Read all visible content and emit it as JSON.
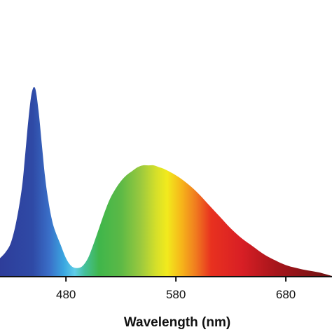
{
  "chart_data": {
    "type": "area",
    "title": "",
    "xlabel": "Wavelength (nm)",
    "ylabel": "",
    "xlim": [
      420,
      722
    ],
    "ylim": [
      0,
      1.0
    ],
    "xticks": [
      480,
      580,
      680
    ],
    "xtick_labels": [
      "480",
      "580",
      "680"
    ],
    "grid": false,
    "legend": "none",
    "fill": "visible-spectrum gradient",
    "series": [
      {
        "x": [
          420,
          425,
          430,
          435,
          440,
          443,
          446,
          449,
          452,
          455,
          458,
          461,
          464,
          467,
          470,
          475,
          480,
          485,
          490,
          495,
          500,
          505,
          510,
          515,
          520,
          525,
          530,
          535,
          540,
          545,
          550,
          555,
          560,
          565,
          570,
          580,
          590,
          600,
          610,
          620,
          630,
          640,
          650,
          660,
          670,
          680,
          690,
          700,
          710,
          722
        ],
        "values": [
          0.09,
          0.12,
          0.17,
          0.28,
          0.45,
          0.62,
          0.8,
          0.93,
          0.95,
          0.84,
          0.67,
          0.5,
          0.38,
          0.29,
          0.23,
          0.16,
          0.09,
          0.05,
          0.04,
          0.05,
          0.09,
          0.16,
          0.24,
          0.32,
          0.39,
          0.44,
          0.48,
          0.51,
          0.53,
          0.55,
          0.56,
          0.56,
          0.56,
          0.55,
          0.54,
          0.51,
          0.47,
          0.42,
          0.36,
          0.3,
          0.24,
          0.19,
          0.15,
          0.11,
          0.08,
          0.055,
          0.04,
          0.028,
          0.018,
          0.0
        ]
      }
    ],
    "spectrum_stops": [
      {
        "nm": 420,
        "color": "#2e3d9a"
      },
      {
        "nm": 450,
        "color": "#2f4aa6"
      },
      {
        "nm": 465,
        "color": "#3a6fc8"
      },
      {
        "nm": 478,
        "color": "#3aa6e0"
      },
      {
        "nm": 488,
        "color": "#5fcde8"
      },
      {
        "nm": 497,
        "color": "#45c09b"
      },
      {
        "nm": 510,
        "color": "#3fb64b"
      },
      {
        "nm": 530,
        "color": "#5cb946"
      },
      {
        "nm": 548,
        "color": "#9bc93e"
      },
      {
        "nm": 562,
        "color": "#d5df2a"
      },
      {
        "nm": 572,
        "color": "#f2ea1d"
      },
      {
        "nm": 585,
        "color": "#f6b61a"
      },
      {
        "nm": 598,
        "color": "#f07c1f"
      },
      {
        "nm": 612,
        "color": "#e8311f"
      },
      {
        "nm": 640,
        "color": "#d81f25"
      },
      {
        "nm": 670,
        "color": "#a8151b"
      },
      {
        "nm": 722,
        "color": "#6d1313"
      }
    ],
    "axis_color": "#111111"
  }
}
